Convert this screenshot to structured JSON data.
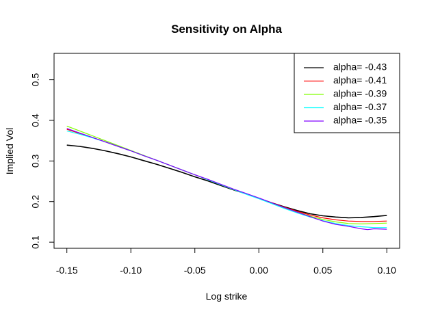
{
  "chart_data": {
    "type": "line",
    "title": "Sensitivity on Alpha",
    "xlabel": "Log strike",
    "ylabel": "Implied Vol",
    "xlim": [
      -0.16,
      0.11
    ],
    "ylim": [
      0.085,
      0.565
    ],
    "x_ticks": [
      -0.15,
      -0.1,
      -0.05,
      0.0,
      0.05,
      0.1
    ],
    "x_tick_labels": [
      "-0.15",
      "-0.10",
      "-0.05",
      "0.00",
      "0.05",
      "0.10"
    ],
    "y_ticks": [
      0.1,
      0.2,
      0.3,
      0.4,
      0.5
    ],
    "y_tick_labels": [
      "0.1",
      "0.2",
      "0.3",
      "0.4",
      "0.5"
    ],
    "legend_position": "top-right",
    "grid": false,
    "series": [
      {
        "name": "alpha= -0.43",
        "color": "#000000",
        "x": [
          -0.15,
          -0.14,
          -0.13,
          -0.12,
          -0.11,
          -0.1,
          -0.09,
          -0.08,
          -0.07,
          -0.06,
          -0.05,
          -0.04,
          -0.03,
          -0.02,
          -0.01,
          0.0,
          0.01,
          0.02,
          0.03,
          0.04,
          0.05,
          0.06,
          0.07,
          0.08,
          0.09,
          0.1
        ],
        "values": [
          0.339,
          0.336,
          0.331,
          0.325,
          0.318,
          0.31,
          0.301,
          0.292,
          0.282,
          0.272,
          0.261,
          0.251,
          0.24,
          0.229,
          0.219,
          0.208,
          0.197,
          0.187,
          0.178,
          0.17,
          0.165,
          0.162,
          0.16,
          0.161,
          0.163,
          0.166
        ]
      },
      {
        "name": "alpha= -0.41",
        "color": "#ff0000",
        "x": [
          -0.15,
          -0.14,
          -0.13,
          -0.12,
          -0.11,
          -0.1,
          -0.09,
          -0.08,
          -0.07,
          -0.06,
          -0.05,
          -0.04,
          -0.03,
          -0.02,
          -0.01,
          0.0,
          0.01,
          0.02,
          0.03,
          0.04,
          0.05,
          0.06,
          0.07,
          0.08,
          0.09,
          0.1
        ],
        "values": [
          0.378,
          0.368,
          0.358,
          0.347,
          0.336,
          0.325,
          0.313,
          0.302,
          0.29,
          0.278,
          0.266,
          0.254,
          0.242,
          0.23,
          0.219,
          0.208,
          0.197,
          0.186,
          0.176,
          0.167,
          0.16,
          0.155,
          0.152,
          0.151,
          0.151,
          0.152
        ]
      },
      {
        "name": "alpha= -0.39",
        "color": "#80ff00",
        "x": [
          -0.15,
          -0.14,
          -0.13,
          -0.12,
          -0.11,
          -0.1,
          -0.09,
          -0.08,
          -0.07,
          -0.06,
          -0.05,
          -0.04,
          -0.03,
          -0.02,
          -0.01,
          0.0,
          0.01,
          0.02,
          0.03,
          0.04,
          0.05,
          0.06,
          0.07,
          0.08,
          0.09,
          0.1
        ],
        "values": [
          0.386,
          0.374,
          0.362,
          0.35,
          0.338,
          0.326,
          0.314,
          0.302,
          0.29,
          0.278,
          0.266,
          0.254,
          0.242,
          0.23,
          0.219,
          0.208,
          0.196,
          0.185,
          0.174,
          0.164,
          0.156,
          0.15,
          0.146,
          0.145,
          0.146,
          0.147
        ]
      },
      {
        "name": "alpha= -0.37",
        "color": "#00ffff",
        "x": [
          -0.15,
          -0.14,
          -0.13,
          -0.12,
          -0.11,
          -0.1,
          -0.09,
          -0.08,
          -0.07,
          -0.06,
          -0.05,
          -0.04,
          -0.03,
          -0.02,
          -0.01,
          0.0,
          0.01,
          0.02,
          0.03,
          0.04,
          0.05,
          0.06,
          0.07,
          0.08,
          0.09,
          0.1
        ],
        "values": [
          0.374,
          0.366,
          0.357,
          0.347,
          0.336,
          0.325,
          0.313,
          0.302,
          0.29,
          0.278,
          0.266,
          0.254,
          0.242,
          0.23,
          0.218,
          0.207,
          0.195,
          0.183,
          0.172,
          0.162,
          0.153,
          0.146,
          0.141,
          0.138,
          0.136,
          0.136
        ]
      },
      {
        "name": "alpha= -0.35",
        "color": "#8000ff",
        "x": [
          -0.15,
          -0.14,
          -0.13,
          -0.12,
          -0.11,
          -0.1,
          -0.09,
          -0.08,
          -0.07,
          -0.06,
          -0.05,
          -0.04,
          -0.03,
          -0.02,
          -0.01,
          0.0,
          0.01,
          0.02,
          0.03,
          0.04,
          0.05,
          0.06,
          0.07,
          0.08,
          0.085,
          0.09,
          0.1
        ],
        "values": [
          0.38,
          0.369,
          0.358,
          0.347,
          0.336,
          0.325,
          0.313,
          0.302,
          0.29,
          0.278,
          0.266,
          0.255,
          0.243,
          0.231,
          0.22,
          0.209,
          0.197,
          0.185,
          0.174,
          0.163,
          0.152,
          0.144,
          0.139,
          0.133,
          0.131,
          0.133,
          0.132
        ]
      }
    ]
  }
}
